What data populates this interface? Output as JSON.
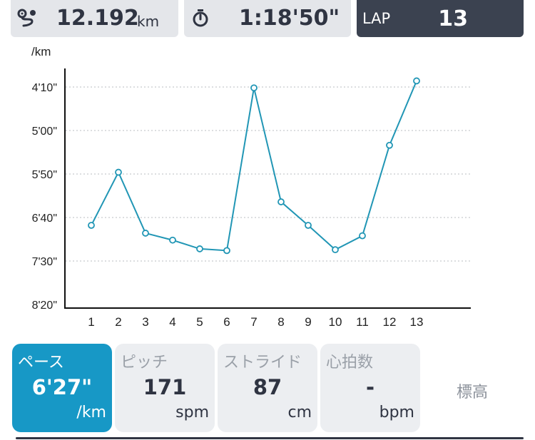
{
  "header": {
    "distance": {
      "value": "12.192",
      "unit": "km",
      "icon": "route-icon"
    },
    "time": {
      "value": "1:18'50\"",
      "icon": "stopwatch-icon"
    },
    "lap": {
      "label": "LAP",
      "value": "13"
    }
  },
  "colors": {
    "accent": "#1798c6",
    "line": "#2196b5",
    "dark": "#3b4250",
    "panel": "#e4e6ea"
  },
  "chart_data": {
    "type": "line",
    "ylabel": "/km",
    "y_reversed": true,
    "y_unit": "seconds per km",
    "yticks": [
      {
        "label": "4'10\"",
        "value": 250
      },
      {
        "label": "5'00\"",
        "value": 300
      },
      {
        "label": "5'50\"",
        "value": 350
      },
      {
        "label": "6'40\"",
        "value": 400
      },
      {
        "label": "7'30\"",
        "value": 450
      },
      {
        "label": "8'20\"",
        "value": 500
      }
    ],
    "ylim": [
      250,
      500
    ],
    "grid": true,
    "x": [
      1,
      2,
      3,
      4,
      5,
      6,
      7,
      8,
      9,
      10,
      11,
      12,
      13
    ],
    "series": [
      {
        "values": [
          409,
          348,
          418,
          426,
          436,
          438,
          251,
          382,
          409,
          437,
          421,
          317,
          243
        ]
      }
    ]
  },
  "metrics": {
    "pace": {
      "label": "ペース",
      "value": "6'27\"",
      "unit": "/km"
    },
    "pitch": {
      "label": "ピッチ",
      "value": "171",
      "unit": "spm"
    },
    "stride": {
      "label": "ストライド",
      "value": "87",
      "unit": "cm"
    },
    "heart_rate": {
      "label": "心拍数",
      "value": "-",
      "unit": "bpm"
    },
    "elevation": {
      "label": "標高"
    }
  }
}
